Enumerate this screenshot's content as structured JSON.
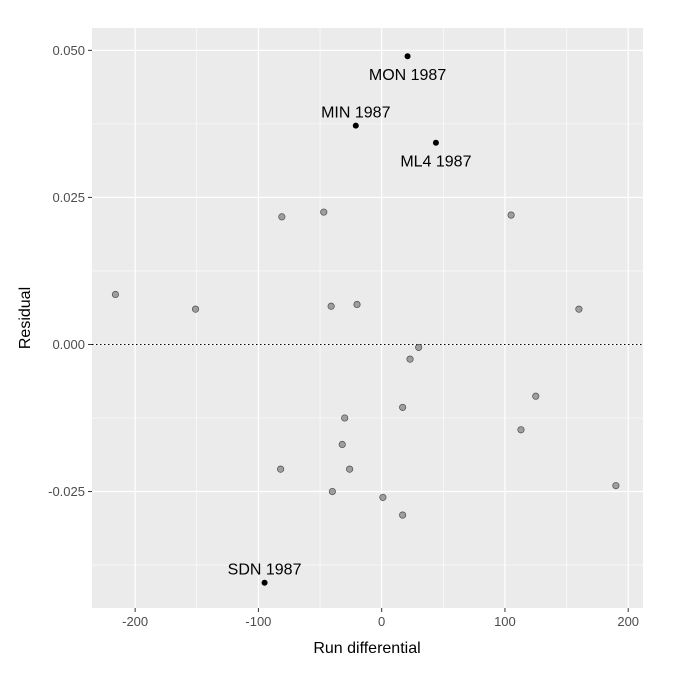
{
  "chart_data": {
    "type": "scatter",
    "title": "",
    "xlabel": "Run differential",
    "ylabel": "Residual",
    "xlim": [
      -235,
      212
    ],
    "ylim": [
      -0.0448,
      0.0538
    ],
    "x_ticks": [
      -200,
      -100,
      0,
      100,
      200
    ],
    "x_tick_labels": [
      "-200",
      "-100",
      "0",
      "100",
      "200"
    ],
    "y_ticks": [
      -0.025,
      0.0,
      0.025,
      0.05
    ],
    "y_tick_labels": [
      "-0.025",
      "0.000",
      "0.025",
      "0.050"
    ],
    "grid": true,
    "panel_background": "#ebebeb",
    "grid_color": "#ffffff",
    "reference_line": {
      "y": 0,
      "style": "dotted",
      "color": "#000000"
    },
    "series": [
      {
        "color": "#9e9e9e",
        "outline": "#4d4d4d",
        "points": [
          {
            "x": -216,
            "y": 0.0085
          },
          {
            "x": -151,
            "y": 0.006
          },
          {
            "x": -81,
            "y": 0.0217
          },
          {
            "x": -47,
            "y": 0.0225
          },
          {
            "x": -41,
            "y": 0.0065
          },
          {
            "x": -20,
            "y": 0.0068
          },
          {
            "x": 105,
            "y": 0.022
          },
          {
            "x": 160,
            "y": 0.006
          },
          {
            "x": 30,
            "y": -0.0005
          },
          {
            "x": 23,
            "y": -0.0025
          },
          {
            "x": 17,
            "y": -0.0107
          },
          {
            "x": 125,
            "y": -0.0088
          },
          {
            "x": 113,
            "y": -0.0145
          },
          {
            "x": -30,
            "y": -0.0125
          },
          {
            "x": -32,
            "y": -0.017
          },
          {
            "x": -82,
            "y": -0.0212
          },
          {
            "x": -26,
            "y": -0.0212
          },
          {
            "x": -40,
            "y": -0.025
          },
          {
            "x": 1,
            "y": -0.026
          },
          {
            "x": 17,
            "y": -0.029
          },
          {
            "x": 190,
            "y": -0.024
          }
        ]
      },
      {
        "color": "#000000",
        "outline": "#000000",
        "points": [
          {
            "x": 21,
            "y": 0.049,
            "label": "MON 1987",
            "label_pos": "below"
          },
          {
            "x": -21,
            "y": 0.0372,
            "label": "MIN 1987",
            "label_pos": "above"
          },
          {
            "x": 44,
            "y": 0.0343,
            "label": "ML4 1987",
            "label_pos": "below"
          },
          {
            "x": -95,
            "y": -0.0405,
            "label": "SDN 1987",
            "label_pos": "above"
          }
        ]
      }
    ]
  }
}
